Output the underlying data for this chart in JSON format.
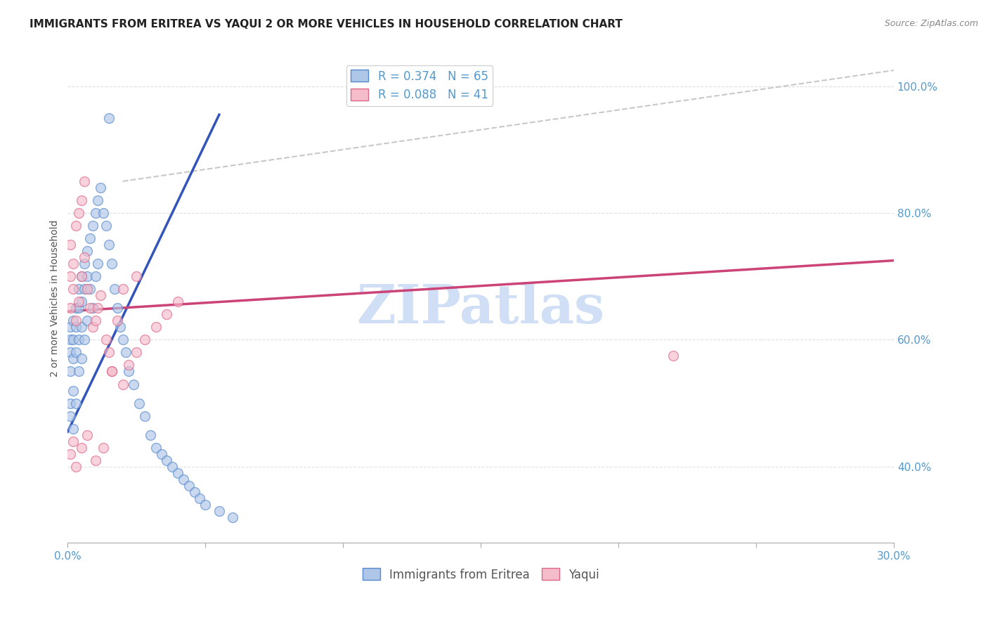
{
  "title": "IMMIGRANTS FROM ERITREA VS YAQUI 2 OR MORE VEHICLES IN HOUSEHOLD CORRELATION CHART",
  "source": "Source: ZipAtlas.com",
  "ylabel": "2 or more Vehicles in Household",
  "xmin": 0.0,
  "xmax": 0.3,
  "ymin": 0.28,
  "ymax": 1.05,
  "xticks": [
    0.0,
    0.05,
    0.1,
    0.15,
    0.2,
    0.25,
    0.3
  ],
  "xticklabels": [
    "0.0%",
    "",
    "",
    "",
    "",
    "",
    "30.0%"
  ],
  "yticks_right": [
    0.4,
    0.6,
    0.8,
    1.0
  ],
  "ytick_labels_right": [
    "40.0%",
    "60.0%",
    "80.0%",
    "100.0%"
  ],
  "legend_blue_r": "R = 0.374",
  "legend_blue_n": "N = 65",
  "legend_pink_r": "R = 0.088",
  "legend_pink_n": "N = 41",
  "legend_label_blue": "Immigrants from Eritrea",
  "legend_label_pink": "Yaqui",
  "blue_color": "#aec6e8",
  "blue_edge": "#5588cc",
  "pink_color": "#f5bccb",
  "pink_edge": "#dd6688",
  "blue_line_color": "#3355bb",
  "pink_line_color": "#cc4477",
  "ref_line_color": "#bbbbbb",
  "background": "#ffffff",
  "watermark": "ZIPatlas",
  "watermark_color": "#d0dff5",
  "title_color": "#222222",
  "axis_color": "#5599cc",
  "grid_color": "#e0e0e0",
  "title_fontsize": 11,
  "source_fontsize": 9,
  "label_fontsize": 10,
  "tick_fontsize": 11,
  "legend_fontsize": 12,
  "marker_size": 100,
  "alpha": 0.65,
  "blue_line_x": [
    0.0,
    0.055
  ],
  "blue_line_y": [
    0.455,
    0.955
  ],
  "pink_line_x": [
    0.0,
    0.3
  ],
  "pink_line_y": [
    0.645,
    0.725
  ],
  "ref_line_x": [
    0.02,
    0.3
  ],
  "ref_line_y": [
    0.85,
    1.025
  ],
  "blue_scatter_x": [
    0.001,
    0.001,
    0.001,
    0.001,
    0.001,
    0.001,
    0.002,
    0.002,
    0.002,
    0.002,
    0.002,
    0.003,
    0.003,
    0.003,
    0.003,
    0.004,
    0.004,
    0.004,
    0.004,
    0.005,
    0.005,
    0.005,
    0.005,
    0.006,
    0.006,
    0.006,
    0.007,
    0.007,
    0.007,
    0.008,
    0.008,
    0.009,
    0.009,
    0.01,
    0.01,
    0.011,
    0.011,
    0.012,
    0.013,
    0.014,
    0.015,
    0.016,
    0.017,
    0.018,
    0.019,
    0.02,
    0.021,
    0.022,
    0.024,
    0.026,
    0.028,
    0.03,
    0.032,
    0.034,
    0.036,
    0.038,
    0.04,
    0.042,
    0.044,
    0.046,
    0.048,
    0.05,
    0.055,
    0.06,
    0.015
  ],
  "blue_scatter_y": [
    0.58,
    0.6,
    0.62,
    0.55,
    0.5,
    0.48,
    0.63,
    0.6,
    0.57,
    0.52,
    0.46,
    0.65,
    0.62,
    0.58,
    0.5,
    0.68,
    0.65,
    0.6,
    0.55,
    0.7,
    0.66,
    0.62,
    0.57,
    0.72,
    0.68,
    0.6,
    0.74,
    0.7,
    0.63,
    0.76,
    0.68,
    0.78,
    0.65,
    0.8,
    0.7,
    0.82,
    0.72,
    0.84,
    0.8,
    0.78,
    0.75,
    0.72,
    0.68,
    0.65,
    0.62,
    0.6,
    0.58,
    0.55,
    0.53,
    0.5,
    0.48,
    0.45,
    0.43,
    0.42,
    0.41,
    0.4,
    0.39,
    0.38,
    0.37,
    0.36,
    0.35,
    0.34,
    0.33,
    0.32,
    0.95
  ],
  "pink_scatter_x": [
    0.001,
    0.001,
    0.001,
    0.002,
    0.002,
    0.003,
    0.003,
    0.004,
    0.004,
    0.005,
    0.005,
    0.006,
    0.006,
    0.007,
    0.008,
    0.009,
    0.01,
    0.011,
    0.012,
    0.014,
    0.015,
    0.016,
    0.018,
    0.02,
    0.022,
    0.025,
    0.028,
    0.032,
    0.036,
    0.04,
    0.001,
    0.002,
    0.003,
    0.005,
    0.007,
    0.01,
    0.013,
    0.016,
    0.02,
    0.025,
    0.22
  ],
  "pink_scatter_y": [
    0.65,
    0.7,
    0.75,
    0.68,
    0.72,
    0.63,
    0.78,
    0.66,
    0.8,
    0.7,
    0.82,
    0.73,
    0.85,
    0.68,
    0.65,
    0.62,
    0.63,
    0.65,
    0.67,
    0.6,
    0.58,
    0.55,
    0.63,
    0.53,
    0.56,
    0.58,
    0.6,
    0.62,
    0.64,
    0.66,
    0.42,
    0.44,
    0.4,
    0.43,
    0.45,
    0.41,
    0.43,
    0.55,
    0.68,
    0.7,
    0.575
  ]
}
